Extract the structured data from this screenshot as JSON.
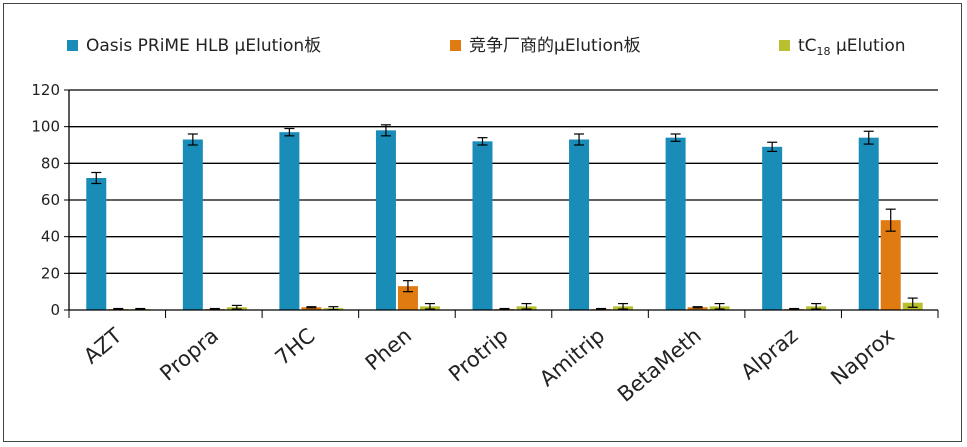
{
  "chart_data": {
    "type": "bar",
    "categories": [
      "AZT",
      "Propra",
      "7HC",
      "Phen",
      "Protrip",
      "Amitrip",
      "BetaMeth",
      "Alpraz",
      "Naprox"
    ],
    "series": [
      {
        "name": "Oasis PRiME HLB μElution板",
        "color": "#1a8cb8",
        "values": [
          72,
          93,
          97,
          98,
          92,
          93,
          94,
          89,
          94
        ],
        "errors": [
          3,
          3,
          2,
          3,
          2,
          3,
          2,
          2.5,
          3.5
        ]
      },
      {
        "name": "竞争厂商的μElution板",
        "color": "#e07b12",
        "values": [
          0.5,
          0.5,
          1.5,
          13,
          0.5,
          0.5,
          1.5,
          0.5,
          49
        ],
        "errors": [
          0.3,
          0.3,
          0.3,
          3,
          0.3,
          0.3,
          0.3,
          0.3,
          6
        ]
      },
      {
        "name": "tC18 μElution",
        "name_parts": [
          "tC",
          "18",
          " μElution"
        ],
        "color": "#b8c030",
        "values": [
          0.5,
          1.5,
          1.0,
          2.0,
          2.0,
          2.0,
          2.0,
          2.0,
          4.0
        ],
        "errors": [
          0.3,
          1.0,
          0.8,
          1.5,
          1.5,
          1.5,
          1.5,
          1.5,
          2.5
        ]
      }
    ],
    "yticks": [
      0,
      20,
      40,
      60,
      80,
      100,
      120
    ],
    "ylim": [
      0,
      120
    ],
    "grid": true,
    "legend_position": "top"
  }
}
